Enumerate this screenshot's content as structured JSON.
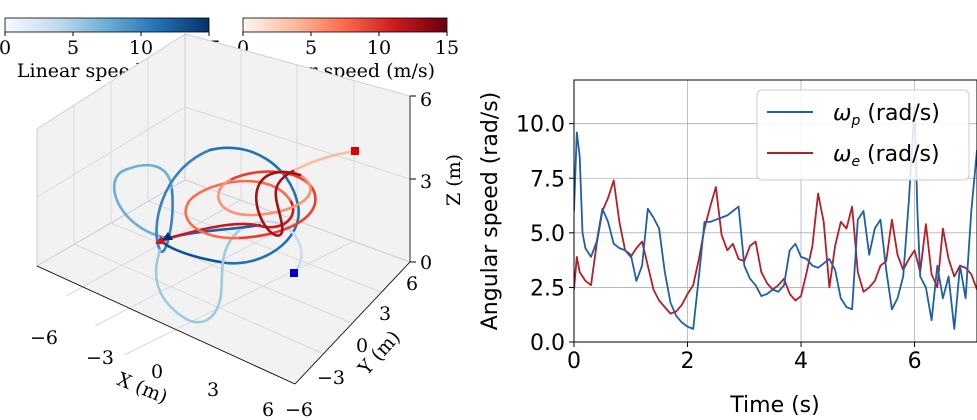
{
  "colors": {
    "blue_series": "#1f5fa6",
    "red_series": "#b22028",
    "blues_cmap": [
      "#f7fbff",
      "#c6dbef",
      "#6baed6",
      "#2171b5",
      "#08306b"
    ],
    "reds_cmap": [
      "#fff5f0",
      "#fcbba1",
      "#fb6a4a",
      "#cb181d",
      "#67000d"
    ]
  },
  "colorbars": [
    {
      "label": "Linear speed (m/s)",
      "ticks": [
        "0",
        "5",
        "10",
        "15"
      ],
      "cmap": "Blues"
    },
    {
      "label": "Linear speed (m/s)",
      "ticks": [
        "0",
        "5",
        "10",
        "15"
      ],
      "cmap": "Reds"
    }
  ],
  "plot3d": {
    "xlabel": "X (m)",
    "ylabel": "Y (m)",
    "zlabel": "Z (m)",
    "x_ticks": [
      "−6",
      "−3",
      "0",
      "3",
      "6"
    ],
    "y_ticks": [
      "−6",
      "−3",
      "0",
      "3",
      "6"
    ],
    "z_ticks": [
      "0",
      "3",
      "6"
    ],
    "xlim": [
      -6,
      6
    ],
    "ylim": [
      -6,
      6
    ],
    "zlim": [
      0,
      6
    ],
    "markers": [
      "start-triangle-blue",
      "start-triangle-red",
      "end-square-blue",
      "end-square-red"
    ]
  },
  "chart_data": {
    "type": "line",
    "xlabel": "Time (s)",
    "ylabel": "Angular speed (rad/s)",
    "xlim": [
      0,
      7.1
    ],
    "ylim": [
      0,
      12
    ],
    "x_ticks": [
      "0",
      "2",
      "4",
      "6"
    ],
    "y_ticks": [
      "0.0",
      "2.5",
      "5.0",
      "7.5",
      "10.0"
    ],
    "grid": true,
    "legend_position": "top-right",
    "series": [
      {
        "name": "ω_p (rad/s)",
        "color": "#1f5fa6",
        "x": [
          0.0,
          0.05,
          0.1,
          0.15,
          0.2,
          0.3,
          0.4,
          0.5,
          0.6,
          0.7,
          0.8,
          0.9,
          1.0,
          1.1,
          1.2,
          1.3,
          1.4,
          1.5,
          1.6,
          1.7,
          1.8,
          1.9,
          2.0,
          2.1,
          2.2,
          2.3,
          2.4,
          2.5,
          2.6,
          2.7,
          2.8,
          2.9,
          3.0,
          3.1,
          3.2,
          3.3,
          3.4,
          3.5,
          3.6,
          3.7,
          3.8,
          3.9,
          4.0,
          4.1,
          4.2,
          4.3,
          4.4,
          4.5,
          4.6,
          4.7,
          4.8,
          4.9,
          5.0,
          5.1,
          5.2,
          5.3,
          5.4,
          5.5,
          5.6,
          5.7,
          5.8,
          5.9,
          6.0,
          6.05,
          6.1,
          6.2,
          6.3,
          6.4,
          6.5,
          6.6,
          6.7,
          6.8,
          6.9,
          7.0,
          7.1
        ],
        "values": [
          6.0,
          9.6,
          8.5,
          5.0,
          4.3,
          3.9,
          4.6,
          6.1,
          5.5,
          4.5,
          4.3,
          4.2,
          4.0,
          2.8,
          3.5,
          6.1,
          5.7,
          5.2,
          3.2,
          1.8,
          1.2,
          0.9,
          0.7,
          0.6,
          3.0,
          5.5,
          5.5,
          5.6,
          5.7,
          5.8,
          6.0,
          6.2,
          3.5,
          2.9,
          2.6,
          2.1,
          2.2,
          2.4,
          2.3,
          2.6,
          4.2,
          4.5,
          3.9,
          3.8,
          3.5,
          3.4,
          3.6,
          3.8,
          3.3,
          2.0,
          1.6,
          1.5,
          5.6,
          6.0,
          4.0,
          5.2,
          5.6,
          3.3,
          1.5,
          2.0,
          3.0,
          6.5,
          10.8,
          6.0,
          3.0,
          2.5,
          1.0,
          3.5,
          2.0,
          3.0,
          0.6,
          3.5,
          2.0,
          6.0,
          8.8
        ]
      },
      {
        "name": "ω_e (rad/s)",
        "color": "#b22028",
        "x": [
          0.0,
          0.05,
          0.1,
          0.2,
          0.3,
          0.4,
          0.5,
          0.6,
          0.7,
          0.8,
          0.9,
          1.0,
          1.1,
          1.2,
          1.3,
          1.4,
          1.5,
          1.6,
          1.7,
          1.8,
          1.9,
          2.0,
          2.1,
          2.2,
          2.3,
          2.4,
          2.5,
          2.6,
          2.7,
          2.8,
          2.9,
          3.0,
          3.1,
          3.2,
          3.3,
          3.4,
          3.5,
          3.6,
          3.7,
          3.8,
          3.9,
          4.0,
          4.1,
          4.2,
          4.3,
          4.4,
          4.5,
          4.6,
          4.7,
          4.8,
          4.9,
          5.0,
          5.1,
          5.2,
          5.3,
          5.4,
          5.5,
          5.6,
          5.7,
          5.8,
          5.9,
          6.0,
          6.1,
          6.2,
          6.3,
          6.4,
          6.5,
          6.6,
          6.7,
          6.8,
          6.9,
          7.0,
          7.1
        ],
        "values": [
          2.4,
          3.9,
          3.2,
          2.8,
          2.6,
          4.5,
          6.0,
          6.6,
          7.4,
          5.5,
          4.2,
          3.9,
          4.3,
          4.6,
          3.5,
          2.4,
          1.9,
          1.6,
          1.3,
          1.4,
          1.7,
          2.2,
          2.6,
          3.8,
          5.2,
          6.2,
          7.1,
          4.9,
          4.2,
          4.5,
          3.8,
          3.7,
          4.4,
          4.6,
          3.2,
          2.7,
          2.4,
          2.6,
          2.9,
          2.2,
          1.9,
          2.1,
          3.2,
          4.4,
          6.8,
          5.5,
          2.5,
          4.4,
          5.5,
          5.2,
          6.2,
          3.2,
          2.3,
          2.5,
          2.8,
          3.5,
          3.7,
          5.6,
          4.0,
          3.3,
          3.8,
          4.2,
          3.2,
          5.4,
          3.1,
          2.5,
          5.2,
          3.8,
          3.0,
          3.5,
          3.4,
          3.1,
          2.4
        ]
      }
    ]
  }
}
